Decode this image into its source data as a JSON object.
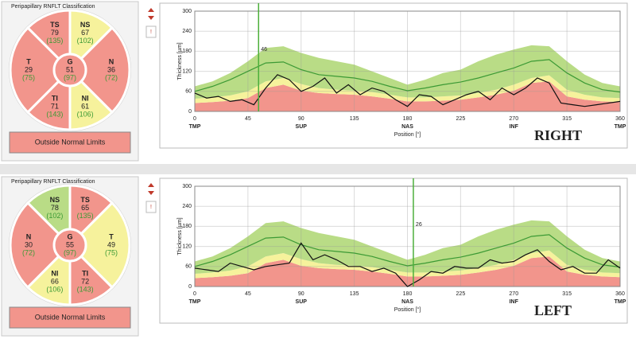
{
  "panels": [
    {
      "heading": "Peripapillary RNFLT Classification",
      "result": "Outside Normal Limits",
      "alert": "!",
      "sectors": [
        {
          "label": "TS",
          "value": 79,
          "normal": "(135)",
          "color": "#f2958c"
        },
        {
          "label": "NS",
          "value": 67,
          "normal": "(102)",
          "color": "#f6f29c"
        },
        {
          "label": "T",
          "value": 29,
          "normal": "(75)",
          "color": "#f2958c"
        },
        {
          "label": "N",
          "value": 36,
          "normal": "(72)",
          "color": "#f2958c"
        },
        {
          "label": "TI",
          "value": 71,
          "normal": "(143)",
          "color": "#f2958c"
        },
        {
          "label": "NI",
          "value": 61,
          "normal": "(106)",
          "color": "#f6f29c"
        },
        {
          "label": "G",
          "value": 51,
          "normal": "(97)",
          "color": "#f2958c"
        }
      ]
    },
    {
      "heading": "Peripapillary RNFLT Classification",
      "result": "Outside Normal Limits",
      "alert": "!",
      "sectors": [
        {
          "label": "NS",
          "value": 78,
          "normal": "(102)",
          "color": "#b9dc86"
        },
        {
          "label": "TS",
          "value": 65,
          "normal": "(135)",
          "color": "#f2958c"
        },
        {
          "label": "N",
          "value": 30,
          "normal": "(72)",
          "color": "#f2958c"
        },
        {
          "label": "T",
          "value": 49,
          "normal": "(75)",
          "color": "#f6f29c"
        },
        {
          "label": "NI",
          "value": 66,
          "normal": "(106)",
          "color": "#f6f29c"
        },
        {
          "label": "TI",
          "value": 72,
          "normal": "(143)",
          "color": "#f2958c"
        },
        {
          "label": "G",
          "value": 55,
          "normal": "(97)",
          "color": "#f2958c"
        }
      ]
    }
  ],
  "chart_data": [
    {
      "type": "line",
      "annotation": "RIGHT",
      "xlabel": "Position [°]",
      "ylabel": "Thickness [µm]",
      "xlim": [
        0,
        360
      ],
      "xticks": [
        0,
        45,
        90,
        135,
        180,
        225,
        270,
        315,
        360
      ],
      "ylim": [
        0,
        300
      ],
      "yticks": [
        0,
        60,
        120,
        180,
        240,
        300
      ],
      "grid": true,
      "regions": [
        {
          "value": 0,
          "label": "TMP"
        },
        {
          "value": 90,
          "label": "SUP"
        },
        {
          "value": 180,
          "label": "NAS"
        },
        {
          "value": 270,
          "label": "INF"
        },
        {
          "value": 360,
          "label": "TMP"
        }
      ],
      "cursor": {
        "x": 54,
        "value": 46,
        "color": "#4caf3a"
      },
      "x": [
        0,
        15,
        30,
        45,
        60,
        75,
        90,
        105,
        120,
        135,
        150,
        165,
        180,
        195,
        210,
        225,
        240,
        255,
        270,
        285,
        300,
        315,
        330,
        345,
        360
      ],
      "series": [
        {
          "style": "area",
          "color": "#f2958c",
          "values": [
            25,
            28,
            32,
            40,
            70,
            80,
            62,
            55,
            52,
            50,
            45,
            38,
            30,
            30,
            32,
            35,
            42,
            50,
            62,
            85,
            90,
            45,
            35,
            30,
            28
          ]
        },
        {
          "style": "area",
          "color": "#f6f29c",
          "values": [
            13,
            14,
            16,
            20,
            20,
            20,
            20,
            15,
            13,
            12,
            13,
            12,
            12,
            12,
            13,
            13,
            13,
            15,
            18,
            15,
            18,
            20,
            15,
            12,
            12
          ]
        },
        {
          "style": "area",
          "color": "#b9dc86",
          "values": [
            37,
            48,
            67,
            90,
            100,
            95,
            93,
            90,
            85,
            78,
            62,
            50,
            38,
            53,
            70,
            77,
            95,
            105,
            105,
            98,
            87,
            85,
            60,
            43,
            35
          ]
        },
        {
          "style": "line",
          "color": "#3c9a35",
          "values": [
            60,
            75,
            95,
            120,
            145,
            148,
            125,
            110,
            105,
            100,
            90,
            75,
            62,
            70,
            80,
            88,
            100,
            115,
            130,
            150,
            155,
            115,
            85,
            65,
            58
          ]
        },
        {
          "style": "line",
          "color": "#111111",
          "x": [
            0,
            10,
            20,
            30,
            40,
            50,
            60,
            70,
            80,
            90,
            100,
            110,
            120,
            130,
            140,
            150,
            160,
            170,
            180,
            190,
            200,
            210,
            220,
            230,
            240,
            250,
            260,
            270,
            280,
            290,
            300,
            310,
            320,
            330,
            340,
            350,
            360
          ],
          "values": [
            55,
            40,
            45,
            30,
            35,
            20,
            70,
            110,
            95,
            60,
            75,
            100,
            55,
            80,
            50,
            70,
            60,
            35,
            15,
            50,
            45,
            20,
            35,
            50,
            60,
            35,
            70,
            50,
            70,
            100,
            85,
            25,
            20,
            15,
            20,
            25,
            30
          ]
        }
      ]
    },
    {
      "type": "line",
      "annotation": "LEFT",
      "xlabel": "Position [°]",
      "ylabel": "Thickness [µm]",
      "xlim": [
        0,
        360
      ],
      "xticks": [
        0,
        45,
        90,
        135,
        180,
        225,
        270,
        315,
        360
      ],
      "ylim": [
        0,
        300
      ],
      "yticks": [
        0,
        60,
        120,
        180,
        240,
        300
      ],
      "grid": true,
      "regions": [
        {
          "value": 0,
          "label": "TMP"
        },
        {
          "value": 90,
          "label": "SUP"
        },
        {
          "value": 180,
          "label": "NAS"
        },
        {
          "value": 270,
          "label": "INF"
        },
        {
          "value": 360,
          "label": "TMP"
        }
      ],
      "cursor": {
        "x": 185,
        "value": 26,
        "color": "#4caf3a"
      },
      "x": [
        0,
        15,
        30,
        45,
        60,
        75,
        90,
        105,
        120,
        135,
        150,
        165,
        180,
        195,
        210,
        225,
        240,
        255,
        270,
        285,
        300,
        315,
        330,
        345,
        360
      ],
      "series": [
        {
          "style": "area",
          "color": "#f2958c",
          "values": [
            25,
            28,
            32,
            40,
            70,
            80,
            62,
            55,
            52,
            50,
            45,
            38,
            30,
            30,
            32,
            35,
            42,
            50,
            62,
            85,
            90,
            45,
            35,
            30,
            28
          ]
        },
        {
          "style": "area",
          "color": "#f6f29c",
          "values": [
            13,
            14,
            16,
            20,
            20,
            20,
            20,
            15,
            13,
            12,
            13,
            12,
            12,
            12,
            13,
            13,
            13,
            15,
            18,
            15,
            18,
            20,
            15,
            12,
            12
          ]
        },
        {
          "style": "area",
          "color": "#b9dc86",
          "values": [
            37,
            48,
            67,
            90,
            100,
            95,
            93,
            90,
            85,
            78,
            62,
            50,
            38,
            53,
            70,
            77,
            95,
            105,
            105,
            98,
            87,
            85,
            60,
            43,
            35
          ]
        },
        {
          "style": "line",
          "color": "#3c9a35",
          "values": [
            60,
            75,
            95,
            120,
            145,
            148,
            125,
            110,
            105,
            100,
            90,
            75,
            62,
            70,
            80,
            88,
            100,
            115,
            130,
            150,
            155,
            115,
            85,
            65,
            58
          ]
        },
        {
          "style": "line",
          "color": "#111111",
          "x": [
            0,
            10,
            20,
            30,
            40,
            50,
            60,
            70,
            80,
            90,
            100,
            110,
            120,
            130,
            140,
            150,
            160,
            170,
            180,
            190,
            200,
            210,
            220,
            230,
            240,
            250,
            260,
            270,
            280,
            290,
            300,
            310,
            320,
            330,
            340,
            350,
            360
          ],
          "values": [
            55,
            50,
            45,
            70,
            60,
            50,
            60,
            65,
            70,
            130,
            80,
            95,
            80,
            60,
            60,
            45,
            55,
            40,
            0,
            20,
            45,
            40,
            60,
            55,
            55,
            80,
            70,
            75,
            95,
            110,
            75,
            50,
            60,
            40,
            40,
            80,
            55
          ]
        }
      ]
    }
  ]
}
